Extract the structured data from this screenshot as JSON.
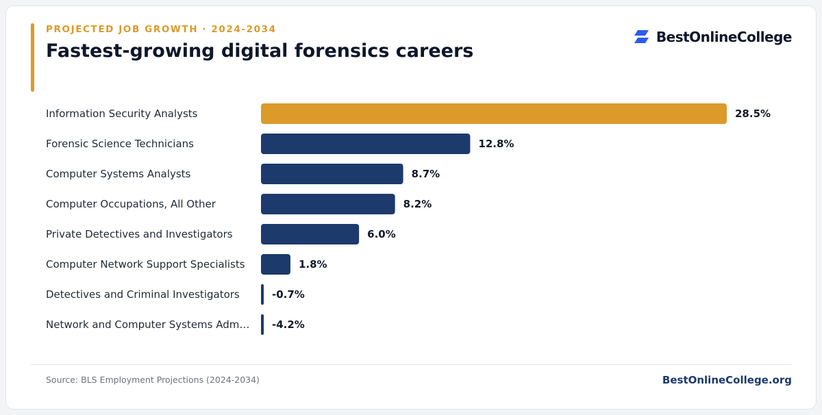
{
  "header": {
    "eyebrow": "PROJECTED JOB GROWTH · 2024-2034",
    "title": "Fastest-growing digital forensics careers"
  },
  "brand": {
    "name": "BestOnlineCollege",
    "icon": "bestonlinecollege-logo-icon",
    "logo_color": "#2f5bf0"
  },
  "chart_data": {
    "type": "bar",
    "orientation": "horizontal",
    "categories": [
      "Information Security Analysts",
      "Forensic Science Technicians",
      "Computer Systems Analysts",
      "Computer Occupations, All Other",
      "Private Detectives and Investigators",
      "Computer Network Support Specialists",
      "Detectives and Criminal Investigators",
      "Network and Computer Systems Adm…"
    ],
    "values": [
      28.5,
      12.8,
      8.7,
      8.2,
      6.0,
      1.8,
      -0.7,
      -4.2
    ],
    "value_labels": [
      "28.5%",
      "12.8%",
      "8.7%",
      "8.2%",
      "6.0%",
      "1.8%",
      "-0.7%",
      "-4.2%"
    ],
    "highlight_index": 0,
    "colors": {
      "highlight": "#dc9a2a",
      "default": "#1c3a6b"
    },
    "grid": false,
    "legend": "none"
  },
  "footer": {
    "source": "Source: BLS Employment Projections (2024-2034)",
    "site": "BestOnlineCollege.org"
  }
}
